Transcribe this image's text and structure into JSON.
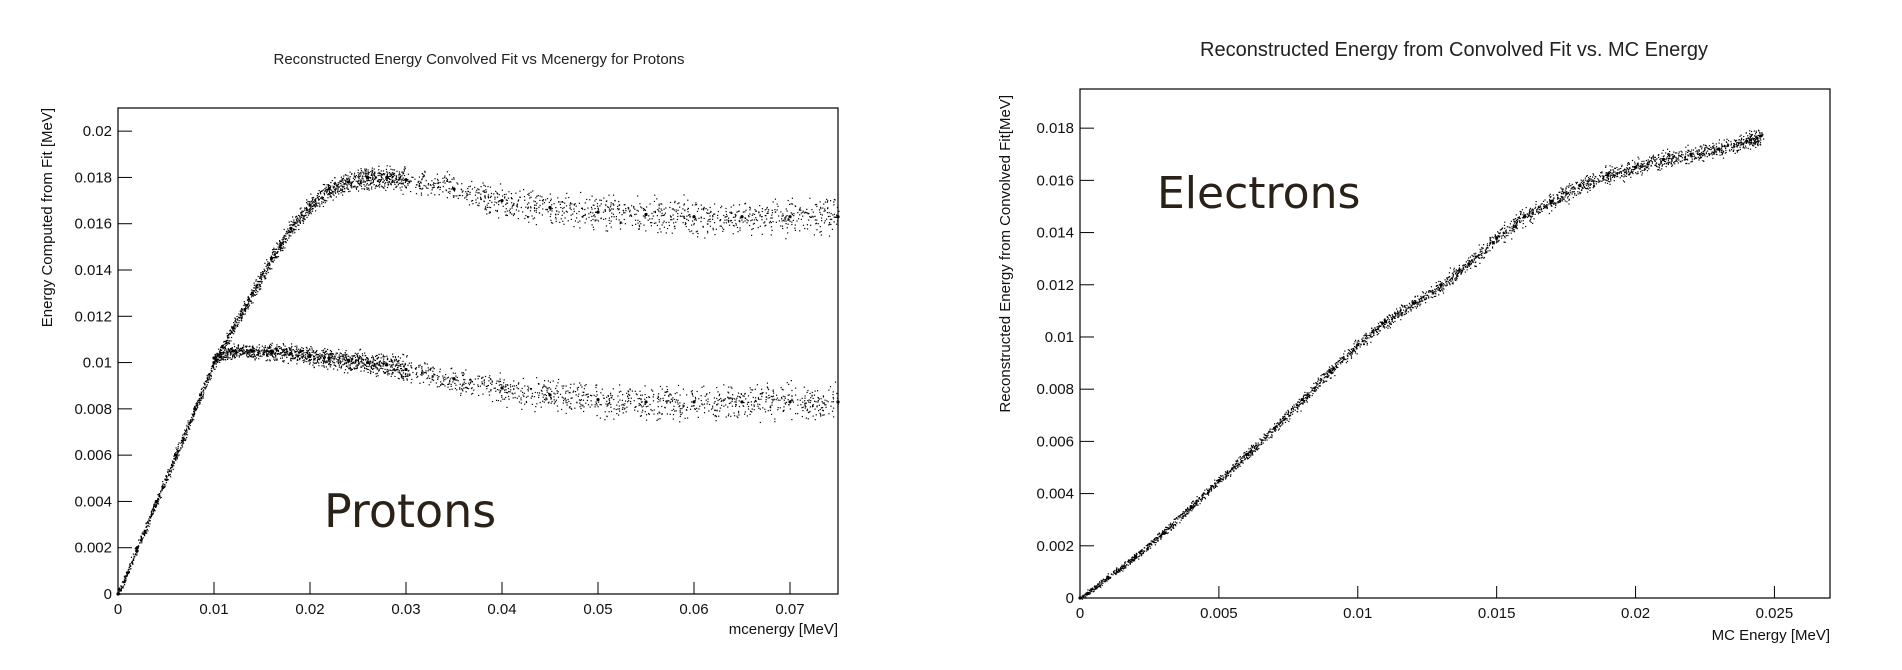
{
  "chart_data": [
    {
      "type": "scatter",
      "title": "Reconstructed Energy Convolved Fit vs Mcenergy for Protons",
      "xlabel": "mcenergy [MeV]",
      "ylabel": "Energy Computed from Fit [MeV]",
      "annotation": "Protons",
      "xlim": [
        0,
        0.075
      ],
      "ylim": [
        0,
        0.021
      ],
      "xticks": [
        0,
        0.01,
        0.02,
        0.03,
        0.04,
        0.05,
        0.06,
        0.07
      ],
      "xtick_labels": [
        "0",
        "0.01",
        "0.02",
        "0.03",
        "0.04",
        "0.05",
        "0.06",
        "0.07"
      ],
      "yticks": [
        0,
        0.002,
        0.004,
        0.006,
        0.008,
        0.01,
        0.012,
        0.014,
        0.016,
        0.018,
        0.02
      ],
      "ytick_labels": [
        "0",
        "0.002",
        "0.004",
        "0.006",
        "0.008",
        "0.01",
        "0.012",
        "0.014",
        "0.016",
        "0.018",
        "0.02"
      ],
      "grid": false,
      "series": [
        {
          "x": [
            0,
            0.002,
            0.004,
            0.006,
            0.008,
            0.01,
            0.012,
            0.014,
            0.016,
            0.018,
            0.02,
            0.022,
            0.024,
            0.026,
            0.028,
            0.03,
            0.035,
            0.04,
            0.045,
            0.05,
            0.055,
            0.06,
            0.065,
            0.07,
            0.075
          ],
          "y": [
            0,
            0.002,
            0.004,
            0.006,
            0.008,
            0.01,
            0.0115,
            0.013,
            0.0145,
            0.0158,
            0.0168,
            0.0175,
            0.0178,
            0.018,
            0.018,
            0.0179,
            0.0175,
            0.017,
            0.0167,
            0.0165,
            0.0164,
            0.0163,
            0.0163,
            0.0163,
            0.0163
          ]
        },
        {
          "x": [
            0.01,
            0.012,
            0.014,
            0.016,
            0.018,
            0.02,
            0.022,
            0.024,
            0.026,
            0.028,
            0.03,
            0.035,
            0.04,
            0.045,
            0.05,
            0.055,
            0.06,
            0.065,
            0.07,
            0.075
          ],
          "y": [
            0.0102,
            0.0105,
            0.0105,
            0.0105,
            0.0104,
            0.0103,
            0.0102,
            0.0101,
            0.01,
            0.0099,
            0.0097,
            0.0093,
            0.0089,
            0.0086,
            0.0084,
            0.0083,
            0.0083,
            0.0083,
            0.0083,
            0.0083
          ]
        }
      ]
    },
    {
      "type": "scatter",
      "title": "Reconstructed Energy from Convolved Fit vs. MC Energy",
      "xlabel": "MC Energy [MeV]",
      "ylabel": "Reconstructed Energy from Convolved Fit[MeV]",
      "annotation": "Electrons",
      "xlim": [
        0,
        0.027
      ],
      "ylim": [
        0,
        0.0195
      ],
      "xticks": [
        0,
        0.005,
        0.01,
        0.015,
        0.02,
        0.025
      ],
      "xtick_labels": [
        "0",
        "0.005",
        "0.01",
        "0.015",
        "0.02",
        "0.025"
      ],
      "yticks": [
        0,
        0.002,
        0.004,
        0.006,
        0.008,
        0.01,
        0.012,
        0.014,
        0.016,
        0.018
      ],
      "ytick_labels": [
        "0",
        "0.002",
        "0.004",
        "0.006",
        "0.008",
        "0.01",
        "0.012",
        "0.014",
        "0.016",
        "0.018"
      ],
      "grid": false,
      "series": [
        {
          "x": [
            0,
            0.001,
            0.002,
            0.003,
            0.004,
            0.005,
            0.006,
            0.007,
            0.008,
            0.009,
            0.01,
            0.011,
            0.012,
            0.013,
            0.014,
            0.015,
            0.016,
            0.017,
            0.018,
            0.019,
            0.02,
            0.021,
            0.022,
            0.023,
            0.024,
            0.0245
          ],
          "y": [
            0,
            0.0008,
            0.0016,
            0.0025,
            0.0035,
            0.0045,
            0.0055,
            0.0065,
            0.0076,
            0.0087,
            0.0097,
            0.0106,
            0.0113,
            0.012,
            0.0128,
            0.0138,
            0.0146,
            0.0152,
            0.0158,
            0.0162,
            0.0165,
            0.0168,
            0.017,
            0.0172,
            0.0175,
            0.0177
          ]
        }
      ]
    }
  ]
}
